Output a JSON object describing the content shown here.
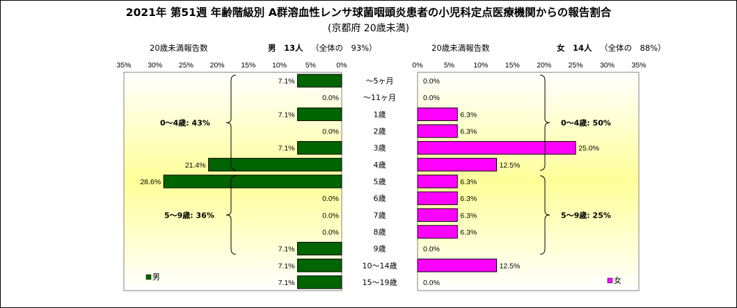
{
  "title": "2021年 第51週 年齢階級別 A群溶血性レンサ球菌咽頭炎患者の小児科定点医療機関からの報告割合",
  "subtitle": "(京都府 20歳未満)",
  "colors": {
    "male": "#006400",
    "female": "#ff00ff",
    "bg_yellow": "#ffff99"
  },
  "chart_data": {
    "type": "bar",
    "orientation": "horizontal",
    "categories": [
      "〜5ヶ月",
      "〜11ヶ月",
      "1歳",
      "2歳",
      "3歳",
      "4歳",
      "5歳",
      "6歳",
      "7歳",
      "8歳",
      "9歳",
      "10〜14歳",
      "15〜19歳"
    ],
    "xlim": [
      0,
      35
    ],
    "xticks": [
      "35%",
      "30%",
      "25%",
      "20%",
      "15%",
      "10%",
      "5%",
      "0%"
    ],
    "xticks_right": [
      "0%",
      "5%",
      "10%",
      "15%",
      "20%",
      "25%",
      "30%",
      "35%"
    ],
    "series": [
      {
        "name": "男",
        "values": [
          7.1,
          0.0,
          7.1,
          0.0,
          7.1,
          21.4,
          28.6,
          0.0,
          0.0,
          0.0,
          7.1,
          7.1,
          7.1
        ],
        "labels": [
          "7.1%",
          "0.0%",
          "7.1%",
          "0.0%",
          "7.1%",
          "21.4%",
          "28.6%",
          "0.0%",
          "0.0%",
          "0.0%",
          "7.1%",
          "7.1%",
          "7.1%"
        ],
        "header_left": "20歳未満報告数",
        "header_count": "男　13人",
        "header_ratio": "（全体の　93%）",
        "groups": [
          "0〜4歳: 43%",
          "5〜9歳: 36%"
        ]
      },
      {
        "name": "女",
        "values": [
          0.0,
          0.0,
          6.3,
          6.3,
          25.0,
          12.5,
          6.3,
          6.3,
          6.3,
          6.3,
          0.0,
          12.5,
          0.0
        ],
        "labels": [
          "0.0%",
          "0.0%",
          "6.3%",
          "6.3%",
          "25.0%",
          "12.5%",
          "6.3%",
          "6.3%",
          "6.3%",
          "6.3%",
          "0.0%",
          "12.5%",
          "0.0%"
        ],
        "header_left": "20歳未満報告数",
        "header_count": "女　14人",
        "header_ratio": "（全体の　88%）",
        "groups": [
          "0〜4歳: 50%",
          "5〜9歳: 25%"
        ]
      }
    ]
  }
}
